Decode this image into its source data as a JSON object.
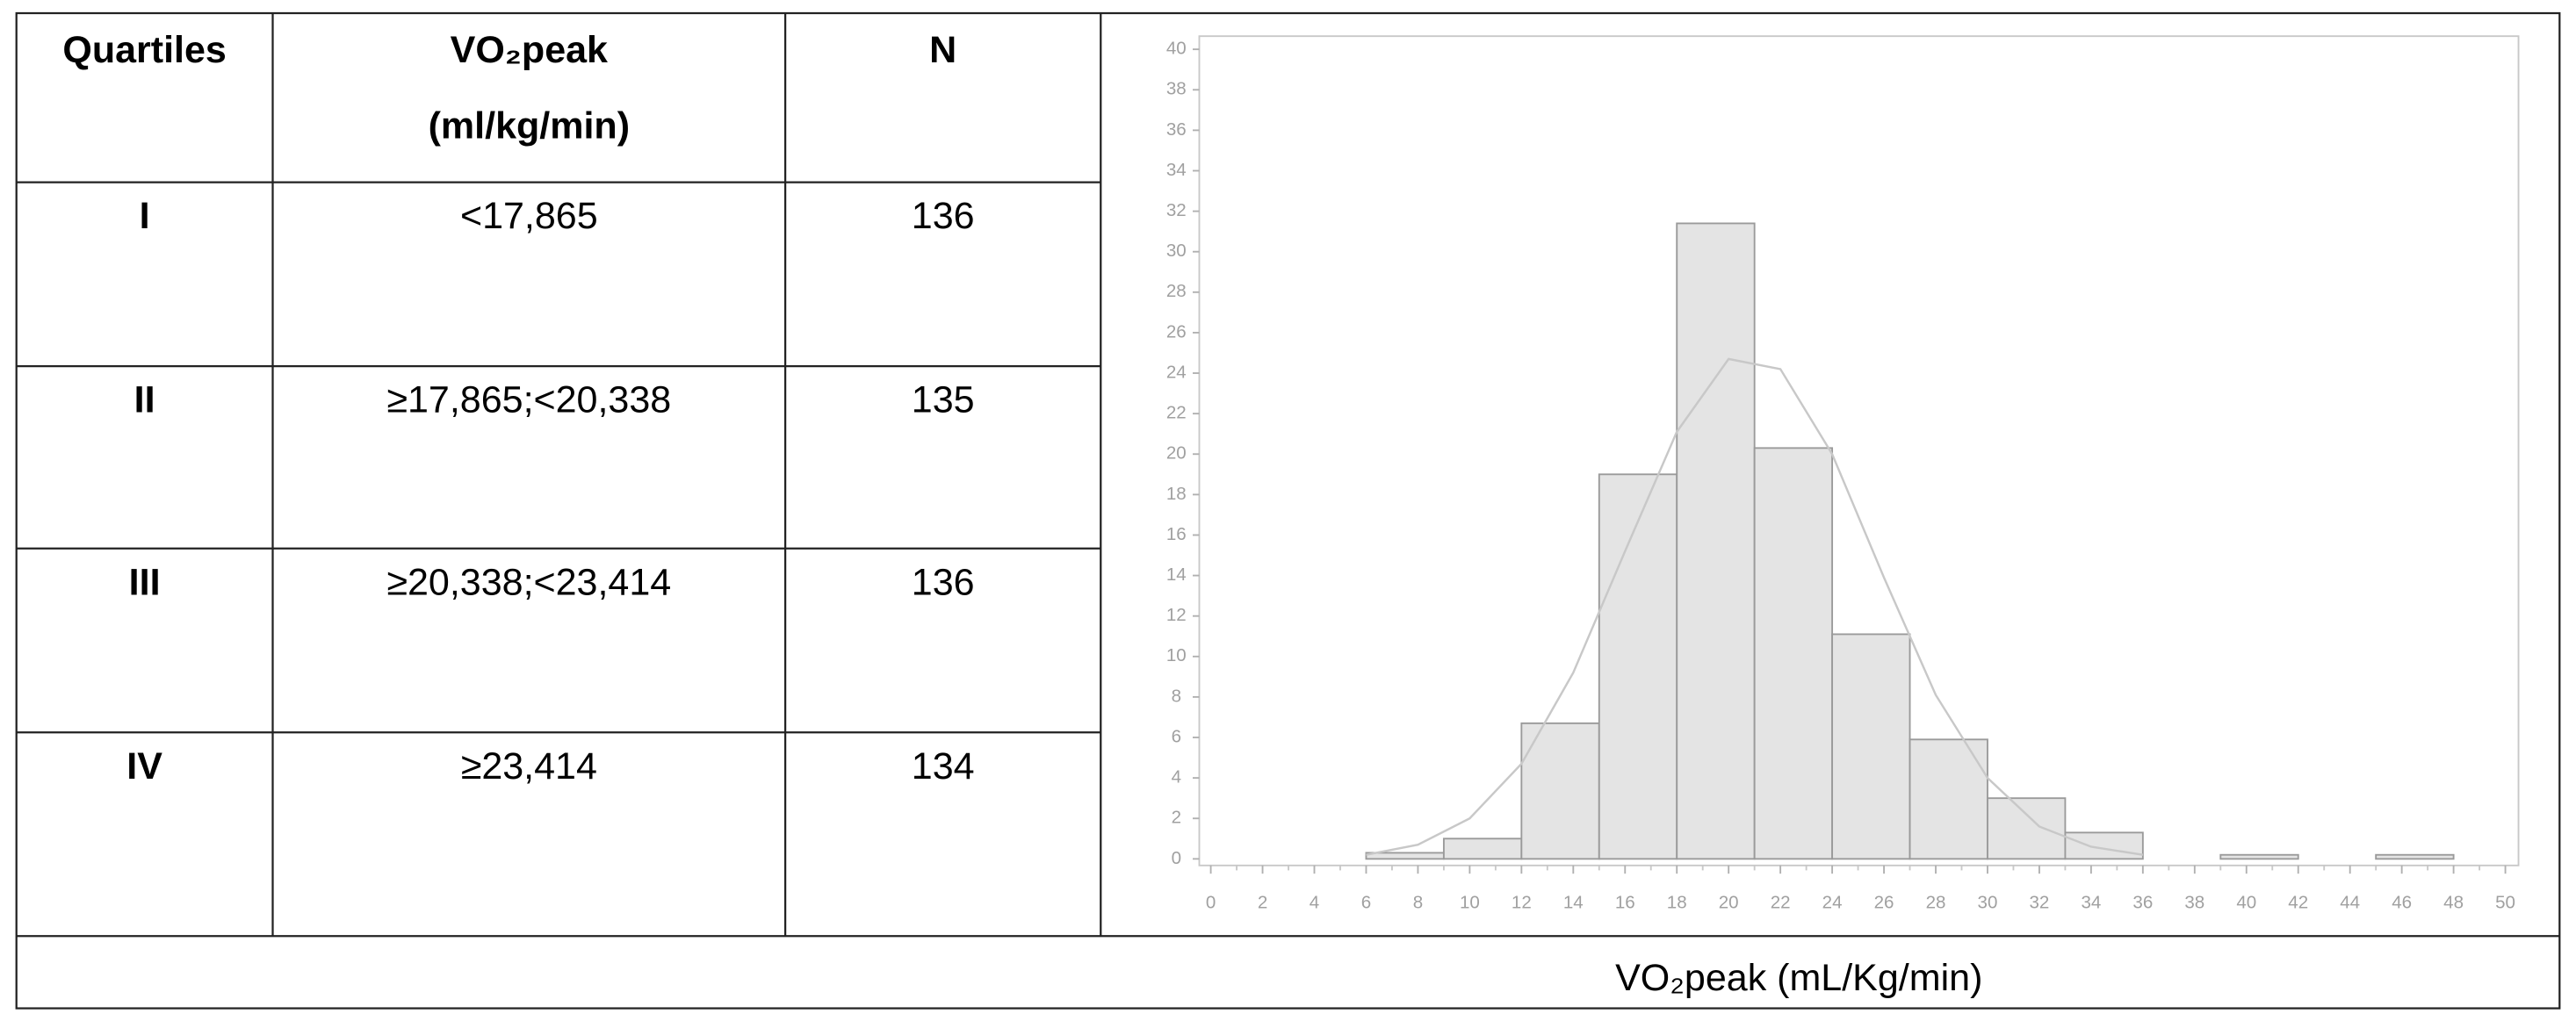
{
  "table": {
    "header": [
      [
        "Quartiles"
      ],
      [
        "VO₂peak",
        "(ml/kg/min)"
      ],
      [
        "N"
      ]
    ],
    "rows": [
      [
        "I",
        "<17,865",
        "136"
      ],
      [
        "II",
        "≥17,865;<20,338",
        "135"
      ],
      [
        "III",
        "≥20,338;<23,414",
        "136"
      ],
      [
        "IV",
        "≥23,414",
        "134"
      ]
    ]
  },
  "chart_data": {
    "type": "histogram",
    "xlabel": "VO₂peak (mL/Kg/min)",
    "bins": [
      6,
      9,
      12,
      15,
      18,
      21,
      24,
      27,
      30,
      33,
      36,
      39,
      42,
      45,
      48
    ],
    "values": [
      0.3,
      1,
      6.7,
      19,
      31.4,
      20.3,
      11.1,
      5.9,
      3,
      1.3,
      0,
      0.2,
      0,
      0.2
    ],
    "color": "#e4e4e4",
    "edge_color": "#9a9a9a",
    "curve": {
      "x": [
        6,
        8,
        10,
        12,
        14,
        16,
        18,
        20,
        22,
        24,
        26,
        28,
        30,
        32,
        34,
        36
      ],
      "values": [
        0.2,
        0.7,
        2.0,
        4.7,
        9.2,
        15.2,
        21.1,
        24.7,
        24.2,
        20.0,
        13.9,
        8.1,
        4.0,
        1.6,
        0.6,
        0.2
      ],
      "color": "#c8c8c8"
    },
    "xlim": [
      0,
      50
    ],
    "xticks": [
      0,
      2,
      4,
      6,
      8,
      10,
      12,
      14,
      16,
      18,
      20,
      22,
      24,
      26,
      28,
      30,
      32,
      34,
      36,
      38,
      40,
      42,
      44,
      46,
      48,
      50
    ],
    "ylim": [
      0,
      40
    ],
    "yticks": [
      0,
      2,
      4,
      6,
      8,
      10,
      12,
      14,
      16,
      18,
      20,
      22,
      24,
      26,
      28,
      30,
      32,
      34,
      36,
      38,
      40
    ]
  }
}
